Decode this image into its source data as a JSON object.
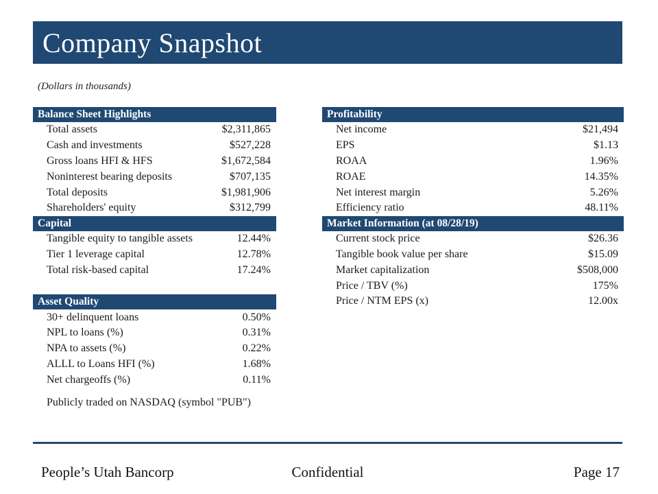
{
  "slide": {
    "title": "Company Snapshot",
    "subtitle_note": "(Dollars in thousands)",
    "colors": {
      "header_blue": "#1F4872",
      "footer_rule": "#27476B",
      "text": "#1a1a1a"
    },
    "columns": {
      "left": {
        "sections": [
          {
            "id": "balance-sheet-highlights",
            "title": "Balance Sheet Highlights",
            "gap_before": 0,
            "rows": [
              {
                "label": "Total assets",
                "value": "$2,311,865"
              },
              {
                "label": "Cash and investments",
                "value": "$527,228"
              },
              {
                "label": "Gross loans HFI & HFS",
                "value": "$1,672,584"
              },
              {
                "label": "Noninterest bearing deposits",
                "value": "$707,135"
              },
              {
                "label": "Total deposits",
                "value": "$1,981,906"
              },
              {
                "label": "Shareholders' equity",
                "value": "$312,799"
              }
            ]
          },
          {
            "id": "capital",
            "title": "Capital",
            "gap_before": 0,
            "rows": [
              {
                "label": "Tangible equity to tangible assets",
                "value": "12.44%"
              },
              {
                "label": "Tier 1 leverage capital",
                "value": "12.78%"
              },
              {
                "label": "Total risk-based capital",
                "value": "17.24%"
              }
            ]
          },
          {
            "id": "asset-quality",
            "title": "Asset Quality",
            "gap_before": 24,
            "rows": [
              {
                "label": "30+ delinquent loans",
                "value": "0.50%"
              },
              {
                "label": "NPL to loans (%)",
                "value": "0.31%"
              },
              {
                "label": "NPA to assets (%)",
                "value": "0.22%"
              },
              {
                "label": "ALLL to Loans HFI (%)",
                "value": "1.68%"
              },
              {
                "label": "Net chargeoffs (%)",
                "value": "0.11%"
              }
            ]
          }
        ],
        "note": "Publicly traded on NASDAQ (symbol \"PUB\")"
      },
      "right": {
        "sections": [
          {
            "id": "profitability",
            "title": "Profitability",
            "gap_before": 0,
            "rows": [
              {
                "label": "Net income",
                "value": "$21,494"
              },
              {
                "label": "EPS",
                "value": "$1.13"
              },
              {
                "label": "ROAA",
                "value": "1.96%"
              },
              {
                "label": "ROAE",
                "value": "14.35%"
              },
              {
                "label": "Net interest margin",
                "value": "5.26%"
              },
              {
                "label": "Efficiency ratio",
                "value": "48.11%"
              }
            ]
          },
          {
            "id": "market-information",
            "title": "Market Information (at 08/28/19)",
            "gap_before": 0,
            "rows": [
              {
                "label": "Current stock price",
                "value": "$26.36"
              },
              {
                "label": "Tangible book value per share",
                "value": "$15.09"
              },
              {
                "label": "Market capitalization",
                "value": "$508,000"
              },
              {
                "label": "Price / TBV (%)",
                "value": "175%"
              },
              {
                "label": "Price / NTM EPS (x)",
                "value": "12.00x"
              }
            ]
          }
        ]
      }
    },
    "footer": {
      "left": "People’s Utah Bancorp",
      "center": "Confidential",
      "right": "Page 17"
    }
  }
}
